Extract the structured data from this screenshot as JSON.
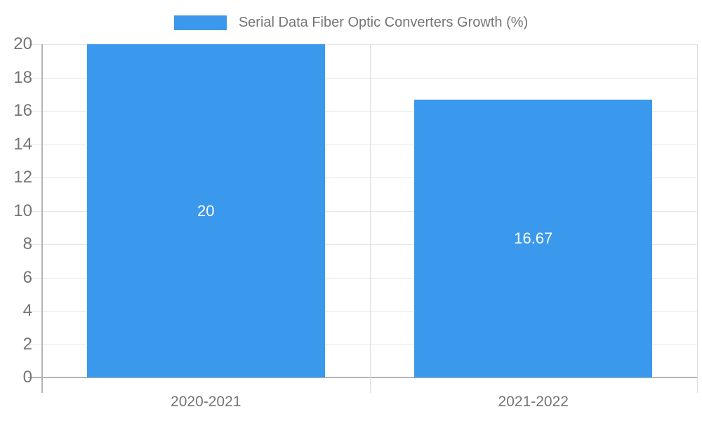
{
  "chart_data": {
    "type": "bar",
    "title": "",
    "xlabel": "",
    "ylabel": "",
    "categories": [
      "2020-2021",
      "2021-2022"
    ],
    "series": [
      {
        "name": "Serial Data Fiber Optic Converters Growth (%)",
        "values": [
          20,
          16.67
        ]
      }
    ],
    "data_labels": [
      "20",
      "16.67"
    ],
    "ylim": [
      0,
      20
    ],
    "ytick_step": 2,
    "yticks": [
      0,
      2,
      4,
      6,
      8,
      10,
      12,
      14,
      16,
      18,
      20
    ],
    "grid": true,
    "legend_position": "top-center",
    "colors": {
      "bar": "#3B99ED",
      "text": "#757575",
      "data_label": "#FFFFFF",
      "grid": "#E6E6E6",
      "divider": "#DDDDDD",
      "axis": "#B3B3B3",
      "background": "#FFFFFF"
    }
  }
}
